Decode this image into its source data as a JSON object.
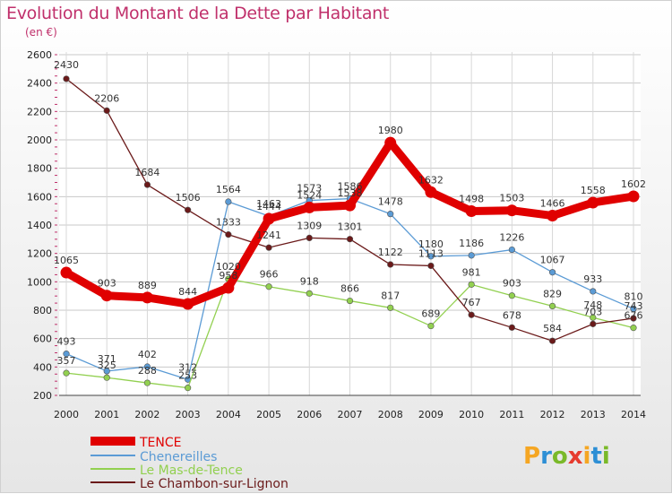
{
  "chart_data": {
    "type": "line",
    "title": "Evolution du Montant de la Dette par Habitant",
    "subtitle": "(en €)",
    "xlabel": "",
    "ylabel": "",
    "x": [
      2000,
      2001,
      2002,
      2003,
      2004,
      2005,
      2006,
      2007,
      2008,
      2009,
      2010,
      2011,
      2012,
      2013,
      2014
    ],
    "ylim": [
      200,
      2600
    ],
    "yticks": [
      200,
      400,
      600,
      800,
      1000,
      1200,
      1400,
      1600,
      1800,
      2000,
      2200,
      2400,
      2600
    ],
    "grid": true,
    "legend_position": "bottom-left",
    "series": [
      {
        "name": "TENCE",
        "color": "#e00000",
        "values": [
          1065,
          903,
          889,
          844,
          958,
          1444,
          1524,
          1538,
          1980,
          1632,
          1498,
          1503,
          1466,
          1558,
          1602
        ]
      },
      {
        "name": "Chenereilles",
        "color": "#5b9bd5",
        "values": [
          493,
          371,
          402,
          312,
          1564,
          1463,
          1573,
          1586,
          1478,
          1180,
          1186,
          1226,
          1067,
          933,
          810
        ]
      },
      {
        "name": "Le Mas-de-Tence",
        "color": "#92d050",
        "values": [
          357,
          325,
          288,
          253,
          1020,
          966,
          918,
          866,
          817,
          689,
          981,
          903,
          829,
          748,
          676
        ]
      },
      {
        "name": "Le Chambon-sur-Lignon",
        "color": "#6b1a1a",
        "values": [
          2430,
          2206,
          1684,
          1506,
          1333,
          1241,
          1309,
          1301,
          1122,
          1113,
          767,
          678,
          584,
          703,
          743
        ]
      }
    ]
  },
  "logo": {
    "text": "Proxiti"
  }
}
